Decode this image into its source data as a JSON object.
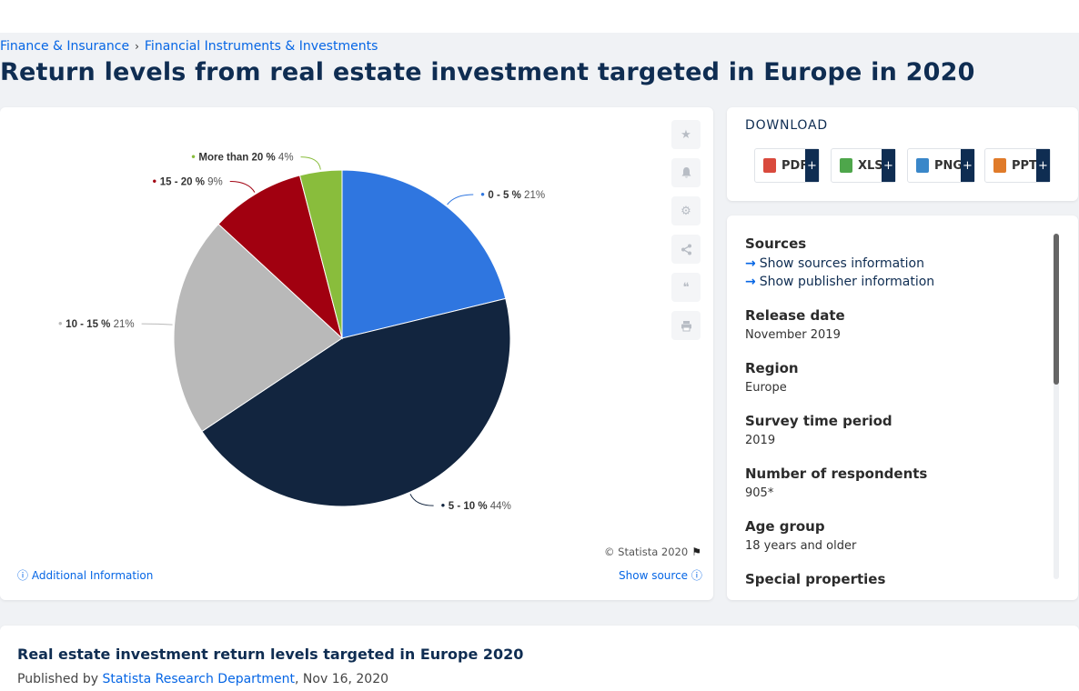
{
  "breadcrumb": [
    "Finance & Insurance",
    "Financial Instruments & Investments"
  ],
  "breadcrumb_sep": "›",
  "title": "Return levels from real estate investment targeted in Europe in 2020",
  "chart_data": {
    "type": "pie",
    "title": "",
    "slices": [
      {
        "label": "0 - 5 %",
        "value": 21,
        "display": "21%",
        "color": "#2f76e0"
      },
      {
        "label": "5 - 10 %",
        "value": 44,
        "display": "44%",
        "color": "#12253f"
      },
      {
        "label": "10 - 15 %",
        "value": 21,
        "display": "21%",
        "color": "#b9b9b9"
      },
      {
        "label": "15 - 20 %",
        "value": 9,
        "display": "9%",
        "color": "#a10010"
      },
      {
        "label": "More than 20 %",
        "value": 4,
        "display": "4%",
        "color": "#89bd3c"
      }
    ]
  },
  "chart_footer": {
    "copyright": "© Statista 2020",
    "additional_info": "Additional Information",
    "show_source": "Show source"
  },
  "download": {
    "title": "DOWNLOAD",
    "buttons": [
      {
        "label": "PDF",
        "icon": "pdf-file-icon",
        "color": "#d94a3d"
      },
      {
        "label": "XLS",
        "icon": "xls-file-icon",
        "color": "#4ea64b"
      },
      {
        "label": "PNG",
        "icon": "png-file-icon",
        "color": "#3a87c9"
      },
      {
        "label": "PPT",
        "icon": "ppt-file-icon",
        "color": "#e07b2a"
      }
    ],
    "plus": "+"
  },
  "meta": {
    "sources_heading": "Sources",
    "show_sources": "Show sources information",
    "show_publisher": "Show publisher information",
    "release_heading": "Release date",
    "release_value": "November 2019",
    "region_heading": "Region",
    "region_value": "Europe",
    "survey_heading": "Survey time period",
    "survey_value": "2019",
    "respondents_heading": "Number of respondents",
    "respondents_value": "905*",
    "age_heading": "Age group",
    "age_value": "18 years and older",
    "special_heading": "Special properties"
  },
  "description": {
    "title": "Real estate investment return levels targeted in Europe 2020",
    "published_by": "Published by",
    "department": "Statista Research Department",
    "date": ", Nov 16, 2020"
  }
}
